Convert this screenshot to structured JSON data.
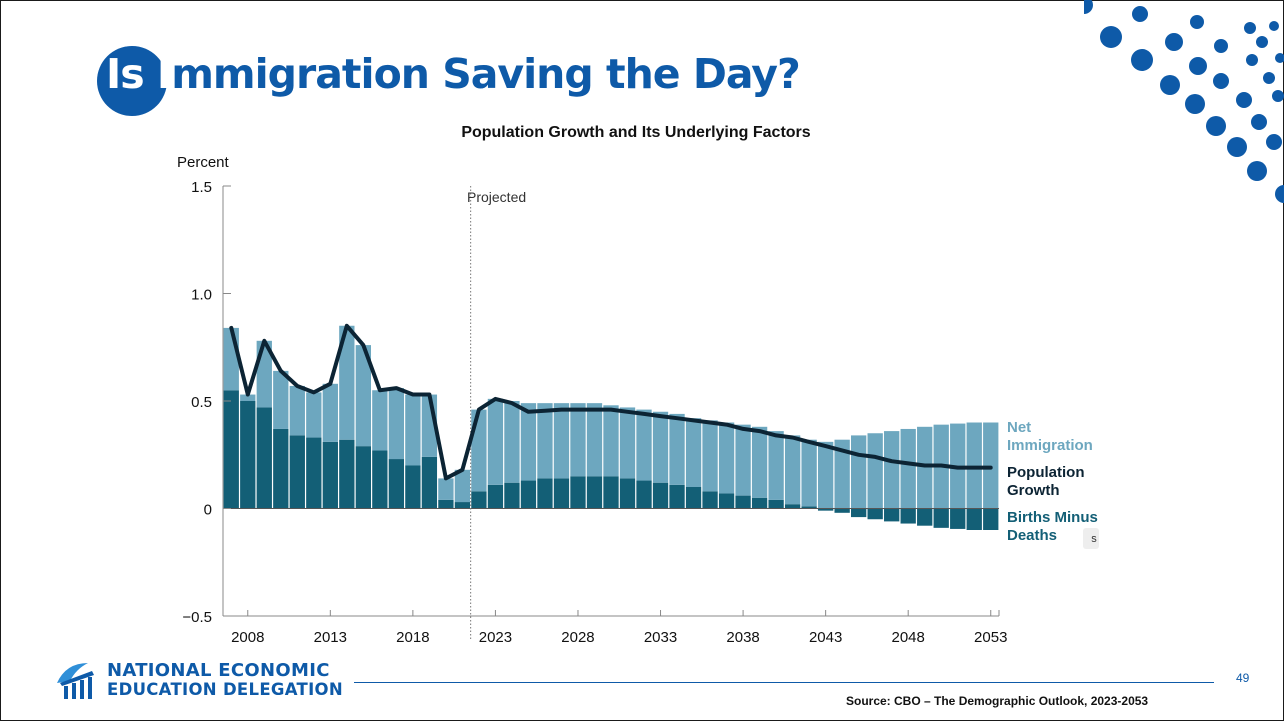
{
  "slide": {
    "title_part1": "Is I",
    "title_part2": "mmigration Saving the Day?",
    "page_number": "49",
    "source": "Source: CBO – The Demographic Outlook, 2023-2053",
    "org_line1": "NATIONAL ECONOMIC",
    "org_line2": "EDUCATION DELEGATION",
    "colors": {
      "accent": "#0e5aa8",
      "net_immigration": "#6da7bf",
      "births_minus_deaths": "#135f76",
      "population_growth": "#0c2434"
    }
  },
  "chart_data": {
    "type": "bar",
    "title": "Population Growth and Its Underlying Factors",
    "ylabel": "Percent",
    "ylim": [
      -0.5,
      1.5
    ],
    "yticks": [
      1.5,
      1.0,
      0.5,
      0,
      -0.5
    ],
    "ytick_labels": [
      "1.5",
      "1.0",
      "0.5",
      "0",
      "−0.5"
    ],
    "xticks": [
      2008,
      2013,
      2018,
      2023,
      2028,
      2033,
      2038,
      2043,
      2048,
      2053
    ],
    "projected_label": "Projected",
    "projected_start": 2021.5,
    "x": [
      2007,
      2008,
      2009,
      2010,
      2011,
      2012,
      2013,
      2014,
      2015,
      2016,
      2017,
      2018,
      2019,
      2020,
      2021,
      2022,
      2023,
      2024,
      2025,
      2026,
      2027,
      2028,
      2029,
      2030,
      2031,
      2032,
      2033,
      2034,
      2035,
      2036,
      2037,
      2038,
      2039,
      2040,
      2041,
      2042,
      2043,
      2044,
      2045,
      2046,
      2047,
      2048,
      2049,
      2050,
      2051,
      2052,
      2053
    ],
    "series": [
      {
        "name": "Births Minus Deaths",
        "kind": "bar",
        "values": [
          0.55,
          0.5,
          0.47,
          0.37,
          0.34,
          0.33,
          0.31,
          0.32,
          0.29,
          0.27,
          0.23,
          0.2,
          0.24,
          0.04,
          0.03,
          0.08,
          0.11,
          0.12,
          0.13,
          0.14,
          0.14,
          0.15,
          0.15,
          0.15,
          0.14,
          0.13,
          0.12,
          0.11,
          0.1,
          0.08,
          0.07,
          0.06,
          0.05,
          0.04,
          0.02,
          0.01,
          -0.01,
          -0.02,
          -0.04,
          -0.05,
          -0.06,
          -0.07,
          -0.08,
          -0.09,
          -0.095,
          -0.1,
          -0.1
        ]
      },
      {
        "name": "Net Immigration",
        "kind": "bar",
        "values": [
          0.29,
          0.03,
          0.31,
          0.27,
          0.23,
          0.21,
          0.27,
          0.53,
          0.47,
          0.28,
          0.33,
          0.33,
          0.29,
          0.1,
          0.15,
          0.38,
          0.4,
          0.38,
          0.36,
          0.35,
          0.35,
          0.34,
          0.34,
          0.33,
          0.33,
          0.33,
          0.33,
          0.33,
          0.32,
          0.33,
          0.33,
          0.33,
          0.33,
          0.32,
          0.32,
          0.31,
          0.31,
          0.32,
          0.34,
          0.35,
          0.36,
          0.37,
          0.38,
          0.39,
          0.395,
          0.4,
          0.4
        ]
      },
      {
        "name": "Population Growth",
        "kind": "line",
        "values": [
          0.84,
          0.53,
          0.78,
          0.64,
          0.57,
          0.54,
          0.58,
          0.85,
          0.76,
          0.55,
          0.56,
          0.53,
          0.53,
          0.14,
          0.18,
          0.46,
          0.51,
          0.49,
          0.45,
          0.455,
          0.46,
          0.46,
          0.46,
          0.46,
          0.45,
          0.44,
          0.43,
          0.42,
          0.41,
          0.4,
          0.39,
          0.37,
          0.36,
          0.34,
          0.33,
          0.31,
          0.29,
          0.27,
          0.25,
          0.24,
          0.22,
          0.21,
          0.2,
          0.2,
          0.19,
          0.19,
          0.19
        ]
      }
    ],
    "label_net_line1": "Net",
    "label_net_line2": "Immigration",
    "label_pop_line1": "Population",
    "label_pop_line2": "Growth",
    "label_births_line1": "Births Minus",
    "label_births_line2": "Deaths",
    "stray_label": "s"
  }
}
